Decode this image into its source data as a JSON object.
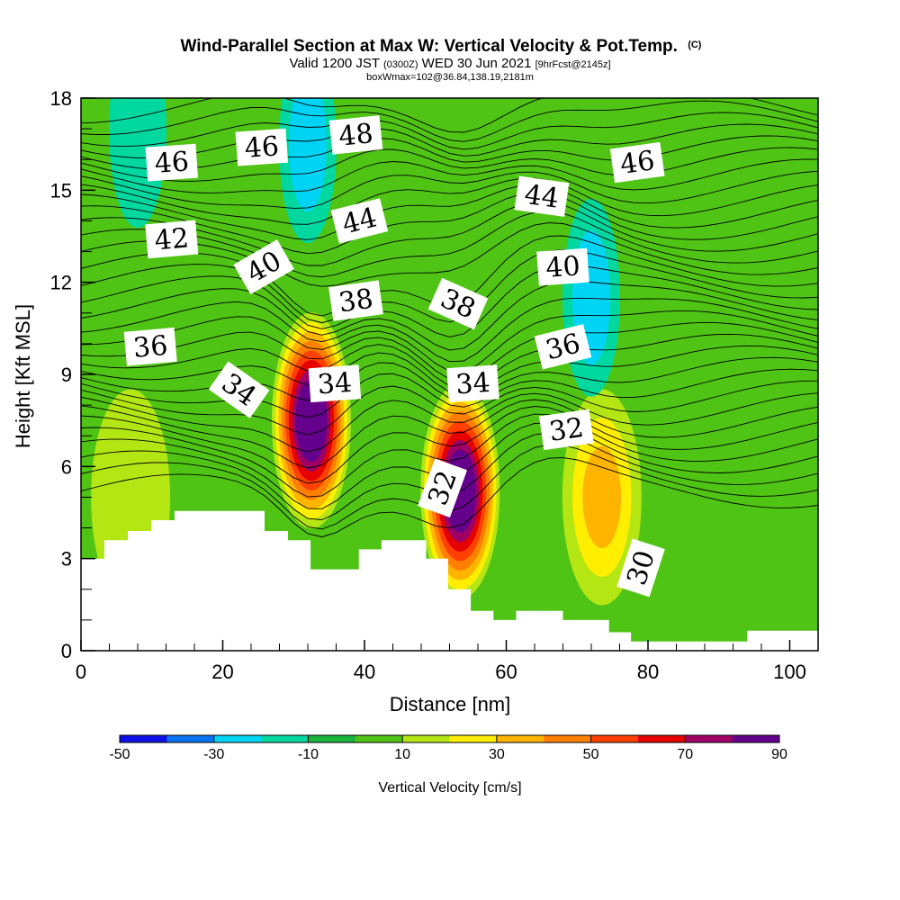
{
  "figure": {
    "title_main": "Wind-Parallel Section at Max W: Vertical Velocity & Pot.Temp.",
    "title_tag": "(C)",
    "valid_prefix": "Valid 1200 JST",
    "valid_utc": "(0300Z)",
    "valid_date": "WED 30 Jun 2021",
    "forecast": "[9hrFcst@2145z]",
    "box_info": "boxWmax=102@36.84,138.19,2181m"
  },
  "colorbar": {
    "label": "Vertical Velocity [cm/s]",
    "tick_labels": [
      "-50",
      "-30",
      "-10",
      "10",
      "30",
      "50",
      "70",
      "90"
    ],
    "colors": [
      "#1010e8",
      "#0a73f0",
      "#00d4f4",
      "#00d8a0",
      "#18b43c",
      "#50c414",
      "#b4e614",
      "#ffee00",
      "#ffb400",
      "#ff8000",
      "#ff4000",
      "#e60000",
      "#a00064",
      "#64008c"
    ]
  },
  "chart_data": {
    "type": "contour",
    "xlabel": "Distance [nm]",
    "ylabel": "Height [Kft MSL]",
    "xlim": [
      0,
      104
    ],
    "ylim": [
      0,
      18
    ],
    "xticks": [
      0,
      20,
      40,
      60,
      80,
      100
    ],
    "yticks": [
      0,
      3,
      6,
      9,
      12,
      15,
      18
    ],
    "filled_field": "Vertical Velocity [cm/s]",
    "contour_field": "Pot.Temp.",
    "terrain": [
      [
        0,
        3
      ],
      [
        3.3,
        3
      ],
      [
        3.3,
        3.6
      ],
      [
        6.6,
        3.6
      ],
      [
        6.6,
        3.9
      ],
      [
        9.9,
        3.9
      ],
      [
        9.9,
        4.25
      ],
      [
        13.2,
        4.25
      ],
      [
        13.2,
        4.55
      ],
      [
        25.9,
        4.55
      ],
      [
        25.9,
        3.9
      ],
      [
        29.2,
        3.9
      ],
      [
        29.2,
        3.6
      ],
      [
        32.4,
        3.6
      ],
      [
        32.4,
        2.65
      ],
      [
        39.2,
        2.65
      ],
      [
        39.2,
        3.3
      ],
      [
        42.4,
        3.3
      ],
      [
        42.4,
        3.6
      ],
      [
        48.7,
        3.6
      ],
      [
        48.7,
        3.0
      ],
      [
        51.8,
        3.0
      ],
      [
        51.8,
        2.0
      ],
      [
        55.0,
        2.0
      ],
      [
        55.0,
        1.3
      ],
      [
        58.2,
        1.3
      ],
      [
        58.2,
        1.0
      ],
      [
        61.4,
        1.0
      ],
      [
        61.4,
        1.3
      ],
      [
        68.0,
        1.3
      ],
      [
        68.0,
        1.0
      ],
      [
        74.5,
        1.0
      ],
      [
        74.5,
        0.6
      ],
      [
        77.6,
        0.6
      ],
      [
        77.6,
        0.3
      ],
      [
        94,
        0.3
      ],
      [
        94,
        0.65
      ],
      [
        104,
        0.65
      ]
    ],
    "w_features": [
      {
        "x": 32.5,
        "y": 7.5,
        "w": 95
      },
      {
        "x": 53.5,
        "y": 5.2,
        "w": 100
      },
      {
        "x": 73.5,
        "y": 5.0,
        "w": 42
      },
      {
        "x": 7,
        "y": 5.0,
        "w": 22
      },
      {
        "x": 93,
        "y": 4.5,
        "w": 6
      },
      {
        "x": 32,
        "y": 16.5,
        "w": -32
      },
      {
        "x": 72,
        "y": 11.5,
        "w": -30
      },
      {
        "x": 8,
        "y": 17,
        "w": -20
      }
    ],
    "theta_labels": [
      {
        "text": "46",
        "x": 12.8,
        "y": 15.9,
        "angle": -4
      },
      {
        "text": "46",
        "x": 25.5,
        "y": 16.4,
        "angle": -4
      },
      {
        "text": "48",
        "x": 38.8,
        "y": 16.8,
        "angle": -6
      },
      {
        "text": "46",
        "x": 78.5,
        "y": 15.9,
        "angle": -8
      },
      {
        "text": "44",
        "x": 39.3,
        "y": 14.0,
        "angle": -14
      },
      {
        "text": "44",
        "x": 65,
        "y": 14.8,
        "angle": 8
      },
      {
        "text": "42",
        "x": 12.8,
        "y": 13.4,
        "angle": -5
      },
      {
        "text": "40",
        "x": 25.8,
        "y": 12.5,
        "angle": -30
      },
      {
        "text": "40",
        "x": 68,
        "y": 12.5,
        "angle": -4
      },
      {
        "text": "38",
        "x": 38.8,
        "y": 11.4,
        "angle": -8
      },
      {
        "text": "38",
        "x": 53.2,
        "y": 11.3,
        "angle": 24
      },
      {
        "text": "36",
        "x": 9.8,
        "y": 9.9,
        "angle": -5
      },
      {
        "text": "36",
        "x": 68,
        "y": 9.9,
        "angle": -14
      },
      {
        "text": "34",
        "x": 22.3,
        "y": 8.5,
        "angle": 35
      },
      {
        "text": "34",
        "x": 35.8,
        "y": 8.7,
        "angle": -4
      },
      {
        "text": "34",
        "x": 55.3,
        "y": 8.7,
        "angle": -4
      },
      {
        "text": "32",
        "x": 68.5,
        "y": 7.2,
        "angle": -8
      },
      {
        "text": "32",
        "x": 51,
        "y": 5.3,
        "angle": -70
      },
      {
        "text": "30",
        "x": 79,
        "y": 2.7,
        "angle": -72
      }
    ]
  }
}
